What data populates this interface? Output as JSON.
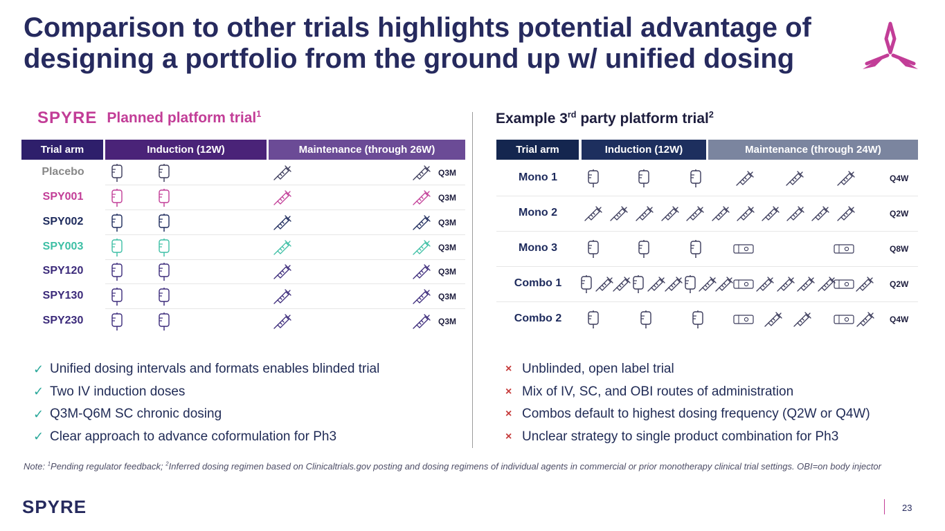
{
  "title": {
    "line1": "Comparison to other trials highlights potential advantage of",
    "line2": "designing a portfolio from the ground up w/ unified dosing"
  },
  "left": {
    "brand": "SPYRE",
    "heading": "Planned platform trial",
    "heading_sup": "1",
    "headers": {
      "arm": "Trial arm",
      "induction": "Induction (12W)",
      "maintenance": "Maintenance (through 26W)"
    },
    "rows": [
      {
        "arm": "Placebo",
        "freq": "Q3M",
        "color": "#888888"
      },
      {
        "arm": "SPY001",
        "freq": "Q3M",
        "color": "#c23d97"
      },
      {
        "arm": "SPY002",
        "freq": "Q3M",
        "color": "#1d2a5c"
      },
      {
        "arm": "SPY003",
        "freq": "Q3M",
        "color": "#3dbfa5"
      },
      {
        "arm": "SPY120",
        "freq": "Q3M",
        "color": "#3b2a7a"
      },
      {
        "arm": "SPY130",
        "freq": "Q3M",
        "color": "#3b2a7a"
      },
      {
        "arm": "SPY230",
        "freq": "Q3M",
        "color": "#3b2a7a"
      }
    ],
    "bullets": [
      "Unified dosing intervals and formats enables blinded trial",
      "Two IV induction doses",
      "Q3M-Q6M SC chronic dosing",
      "Clear approach to advance coformulation for Ph3"
    ],
    "check_symbol": "✓"
  },
  "right": {
    "heading_pre": "Example 3",
    "heading_sup1": "rd",
    "heading_mid": " party platform trial",
    "heading_sup2": "2",
    "headers": {
      "arm": "Trial arm",
      "induction": "Induction (12W)",
      "maintenance": "Maintenance (through 24W)"
    },
    "rows": [
      {
        "arm": "Mono 1",
        "freq": "Q4W"
      },
      {
        "arm": "Mono 2",
        "freq": "Q2W"
      },
      {
        "arm": "Mono 3",
        "freq": "Q8W"
      },
      {
        "arm": "Combo 1",
        "freq": "Q2W"
      },
      {
        "arm": "Combo 2",
        "freq": "Q4W"
      }
    ],
    "bullets": [
      "Unblinded, open label trial",
      "Mix of IV, SC, and OBI routes of administration",
      "Combos default to highest dosing frequency (Q2W or Q4W)",
      "Unclear strategy to single product combination for Ph3"
    ],
    "cross_symbol": "×"
  },
  "note": {
    "prefix": "Note: ",
    "sup1": "1",
    "part1": "Pending regulator feedback; ",
    "sup2": "2",
    "part2": "Inferred dosing regimen based on Clinicaltrials.gov posting and dosing regimens of individual agents in commercial or prior monotherapy clinical trial settings. OBI=on body injector"
  },
  "footer": {
    "brand": "SPYRE",
    "page": "23"
  },
  "colors": {
    "title": "#262a5e",
    "accent": "#c23d97",
    "left_arm_header": "#2e1f6b",
    "left_induction_header": "#4a2378",
    "left_maint_header": "#6b4b96",
    "right_arm_header": "#14264f",
    "right_induction_header": "#1d2f5e",
    "right_maint_header": "#7b859f",
    "icon_dark": "#3a3a5a"
  },
  "icon_names": [
    "iv-bag-icon",
    "syringe-icon",
    "on-body-injector-icon",
    "spyre-logo-icon"
  ]
}
